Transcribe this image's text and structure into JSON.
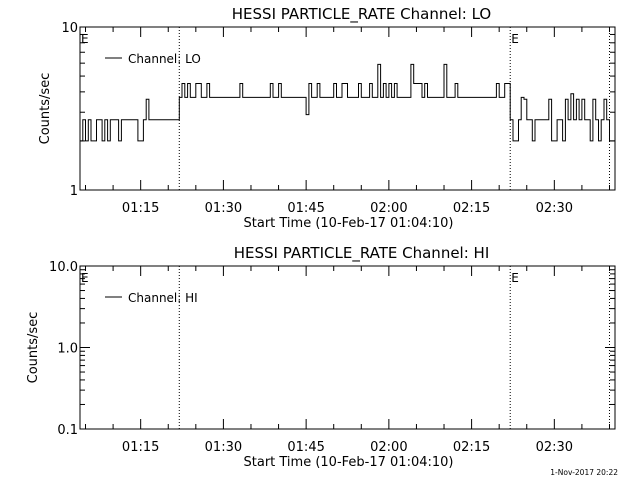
{
  "footer": {
    "timestamp": "1-Nov-2017 20:22"
  },
  "chart_data": [
    {
      "type": "line",
      "title": "HESSI PARTICLE_RATE Channel: LO",
      "xlabel": "Start Time (10-Feb-17 01:04:10)",
      "ylabel": "Counts/sec",
      "y_scale": "log",
      "ylim": [
        1,
        10
      ],
      "ytick_labels": [
        "1",
        "10"
      ],
      "xlim": [
        "01:04",
        "02:41"
      ],
      "xtick_labels": [
        "01:15",
        "01:30",
        "01:45",
        "02:00",
        "02:15",
        "02:30"
      ],
      "legend": {
        "label": "Channel: LO",
        "position": "top-left"
      },
      "markers": [
        {
          "time": "01:04",
          "label": "E"
        },
        {
          "time": "01:22",
          "label": ""
        },
        {
          "time": "02:22",
          "label": "E"
        },
        {
          "time": "02:40",
          "label": ""
        }
      ],
      "series": [
        {
          "name": "Channel: LO",
          "segments": [
            {
              "start": "01:04",
              "end": "01:22",
              "base": 2.7,
              "alt": [
                2.0,
                2.7
              ],
              "spikes": [
                {
                  "time": "01:16",
                  "value": 3.6
                }
              ]
            },
            {
              "start": "01:22",
              "end": "02:22",
              "base": 3.7,
              "alt": [
                3.7,
                4.5
              ],
              "spikes": [
                {
                  "time": "01:45",
                  "value": 2.9
                },
                {
                  "time": "01:58",
                  "value": 5.9
                },
                {
                  "time": "02:04",
                  "value": 5.9
                },
                {
                  "time": "02:10",
                  "value": 5.9
                }
              ]
            },
            {
              "start": "02:22",
              "end": "02:41",
              "base": 2.7,
              "alt": [
                2.0,
                3.6
              ],
              "spikes": [
                {
                  "time": "02:24",
                  "value": 3.7
                },
                {
                  "time": "02:33",
                  "value": 3.9
                }
              ]
            }
          ]
        }
      ]
    },
    {
      "type": "line",
      "title": "HESSI PARTICLE_RATE Channel: HI",
      "xlabel": "Start Time (10-Feb-17 01:04:10)",
      "ylabel": "Counts/sec",
      "y_scale": "log",
      "ylim": [
        0.1,
        10
      ],
      "ytick_labels": [
        "0.1",
        "1.0",
        "10.0"
      ],
      "xlim": [
        "01:04",
        "02:41"
      ],
      "xtick_labels": [
        "01:15",
        "01:30",
        "01:45",
        "02:00",
        "02:15",
        "02:30"
      ],
      "legend": {
        "label": "Channel: HI",
        "position": "top-left"
      },
      "markers": [
        {
          "time": "01:04",
          "label": "E"
        },
        {
          "time": "01:22",
          "label": ""
        },
        {
          "time": "02:22",
          "label": "E"
        },
        {
          "time": "02:40",
          "label": ""
        }
      ],
      "series": [
        {
          "name": "Channel: HI",
          "segments": []
        }
      ]
    }
  ]
}
